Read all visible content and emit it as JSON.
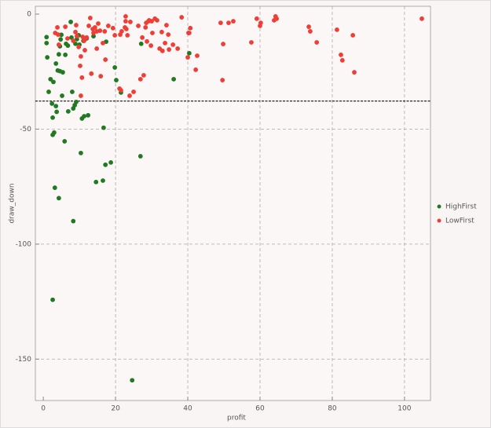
{
  "chart_data": {
    "type": "scatter",
    "x_label": "profit",
    "y_label": "draw_down",
    "xlim": [
      -2.2,
      107.2
    ],
    "ylim": [
      -168,
      3.4
    ],
    "xticks": [
      0,
      20,
      40,
      60,
      80,
      100
    ],
    "yticks": [
      0,
      -50,
      -100,
      -150
    ],
    "grid": true,
    "legend": "right",
    "hline": -37.8,
    "series": [
      {
        "name": "HighFirst",
        "color": "#217a21",
        "x": [
          0.9,
          0.9,
          1.1,
          1.5,
          2,
          2.4,
          2.6,
          2.6,
          2.8,
          3.0,
          3.2,
          3.5,
          3.5,
          3.7,
          4,
          4.3,
          4.3,
          4.6,
          4.6,
          4.8,
          5,
          5.4,
          5.9,
          6.1,
          6.3,
          6.9,
          7.6,
          7.8,
          8.0,
          8.3,
          8.3,
          8.7,
          8.9,
          9.1,
          9.3,
          9.8,
          10,
          10.4,
          10.7,
          11.1,
          11.3,
          12,
          12.4,
          13.9,
          14.6,
          16.5,
          16.7,
          17.2,
          17.4,
          18.7,
          19.8,
          20.2,
          21.5,
          24.6,
          26.9,
          27.1,
          36.1,
          40.4,
          2.6,
          6.8,
          5.2
        ],
        "y": [
          -10,
          -12.6,
          -18.8,
          -33.8,
          -28.3,
          -38.9,
          -45,
          -52.5,
          -29.5,
          -51.5,
          -75.5,
          -40,
          -21.5,
          -42.5,
          -24.5,
          -80,
          -17.5,
          -24.8,
          -14,
          -11,
          -9,
          -25.3,
          -55.3,
          -17.7,
          -12.9,
          -42.3,
          -3.4,
          -10.2,
          -33.8,
          -90,
          -41,
          -39.6,
          -12.9,
          -38.2,
          -10.9,
          -9.2,
          -13.3,
          -60.4,
          -45.4,
          -11.6,
          -44.4,
          -10.6,
          -44,
          -9.6,
          -73,
          -72.4,
          -49.4,
          -65.5,
          -12,
          -64.5,
          -23.2,
          -28.7,
          -34.1,
          -159.2,
          -61.8,
          -12.9,
          -28.3,
          -17,
          -124.2,
          -13.7,
          -35.5
        ]
      },
      {
        "name": "LowFirst",
        "color": "#ef3e36",
        "x": [
          3.3,
          3.9,
          4.1,
          4.3,
          6.1,
          6.7,
          8.3,
          8.9,
          9.1,
          9.3,
          9.8,
          10.2,
          10.4,
          10.4,
          10.7,
          10.9,
          11.3,
          11.5,
          12,
          12.6,
          13,
          13.3,
          13.7,
          13.9,
          14.3,
          14.8,
          14.8,
          15.2,
          15.7,
          15.9,
          16.5,
          17,
          17.2,
          18,
          19.3,
          19.8,
          21.1,
          21.3,
          21.5,
          21.7,
          22.6,
          22.8,
          22.8,
          23,
          23.3,
          23.9,
          24.1,
          25,
          26.3,
          26.9,
          27.4,
          27.8,
          28.3,
          28.5,
          28.7,
          29.1,
          29.3,
          29.8,
          30,
          30.2,
          30.9,
          31.5,
          32.2,
          32.8,
          33,
          33.7,
          34.1,
          34.6,
          34.8,
          35.9,
          37.2,
          38.3,
          40,
          40.2,
          40.4,
          40.7,
          42.2,
          42.6,
          49.1,
          49.6,
          49.8,
          51.3,
          52.6,
          57.6,
          59.1,
          60,
          60.2,
          63.9,
          64.3,
          64.6,
          73.5,
          73.9,
          75.7,
          81.3,
          82.4,
          82.8,
          85.7,
          86.1,
          104.8
        ],
        "y": [
          -8.2,
          -5.8,
          -8.9,
          -13.3,
          -5.5,
          -10.6,
          -11.6,
          -7.8,
          -4.8,
          -9.6,
          -14.3,
          -22.5,
          -18.4,
          -35.5,
          -27.6,
          -9.9,
          -11.6,
          -15.7,
          -10.2,
          -5.1,
          -1.7,
          -25.9,
          -6.5,
          -8.2,
          -5.8,
          -7.5,
          -15,
          -4.1,
          -7.2,
          -27,
          -12.6,
          -7.5,
          -19.8,
          -5.1,
          -6.1,
          -9.2,
          -32.4,
          -8.9,
          -33.1,
          -7.5,
          -5.8,
          -1,
          -3.1,
          -6.5,
          -9.2,
          -35.5,
          -3.4,
          -33.8,
          -5.1,
          -28.3,
          -10.2,
          -26.6,
          -5.8,
          -3.8,
          -11.9,
          -3.1,
          -2.7,
          -13.7,
          -3.1,
          -8.2,
          -2,
          -2.7,
          -15,
          -7.8,
          -16,
          -12.6,
          -4.8,
          -8.9,
          -15.4,
          -13.3,
          -15,
          -1.4,
          -18.8,
          -8.2,
          -8.2,
          -6.1,
          -24.2,
          -18.1,
          -3.8,
          -28.7,
          -13,
          -3.8,
          -3.1,
          -12.3,
          -2,
          -5.1,
          -3.8,
          -2.7,
          -1,
          -2,
          -5.5,
          -7.5,
          -12.3,
          -6.8,
          -17.7,
          -20.1,
          -9.2,
          -25.3,
          -2
        ]
      }
    ]
  }
}
